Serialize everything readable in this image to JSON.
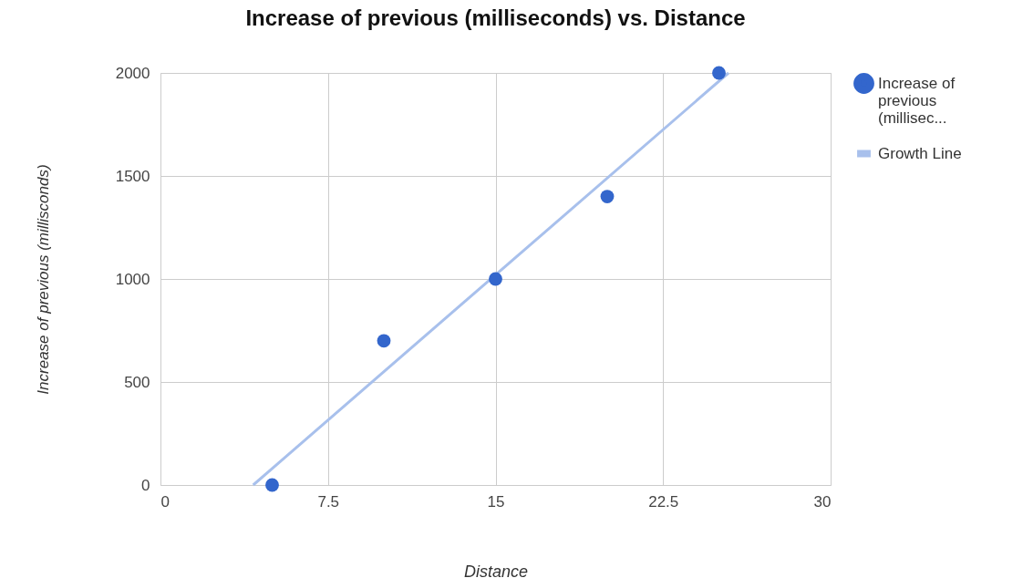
{
  "chart_data": {
    "type": "scatter",
    "title": "Increase of previous (milliseconds) vs. Distance",
    "xlabel": "Distance",
    "ylabel": "Increase of previous (millisconds)",
    "series": [
      {
        "name": "Increase of previous (millisec...",
        "type": "scatter",
        "marker": "circle",
        "color": "#3366cc",
        "x": [
          5,
          10,
          15,
          20,
          25
        ],
        "values": [
          0,
          700,
          1000,
          1400,
          2000
        ]
      },
      {
        "name": "Growth Line",
        "type": "line",
        "color": "#a8c0ec",
        "x": [
          4.15,
          25.43
        ],
        "values": [
          0,
          2000
        ]
      }
    ],
    "xlim": [
      0,
      30
    ],
    "xticks": [
      0,
      7.5,
      15,
      22.5,
      30
    ],
    "ylim": [
      0,
      2000
    ],
    "yticks": [
      0,
      500,
      1000,
      1500,
      2000
    ],
    "grid": true,
    "legend": "top right",
    "line_style": "solid"
  }
}
